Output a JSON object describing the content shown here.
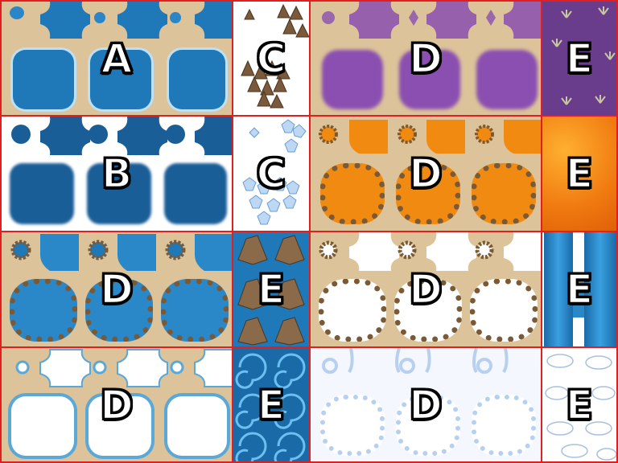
{
  "tileset": {
    "cells": [
      {
        "id": "r1c1",
        "label": "A",
        "kind": "water-autotile"
      },
      {
        "id": "r1c2",
        "label": "C",
        "kind": "rock-spikes"
      },
      {
        "id": "r1c3",
        "label": "D",
        "kind": "poison-swamp"
      },
      {
        "id": "r1c4",
        "label": "E",
        "kind": "purple-weeds"
      },
      {
        "id": "r2c1",
        "label": "B",
        "kind": "deep-water-shadow"
      },
      {
        "id": "r2c2",
        "label": "C",
        "kind": "ice-crystals"
      },
      {
        "id": "r2c3",
        "label": "D",
        "kind": "lava-pool"
      },
      {
        "id": "r2c4",
        "label": "E",
        "kind": "lava-tile"
      },
      {
        "id": "r3c1",
        "label": "D",
        "kind": "water-rock-pond"
      },
      {
        "id": "r3c2",
        "label": "E",
        "kind": "rocks-in-water"
      },
      {
        "id": "r3c3",
        "label": "D",
        "kind": "hole-rock-rim"
      },
      {
        "id": "r3c4",
        "label": "E",
        "kind": "waterfall"
      },
      {
        "id": "r4c1",
        "label": "D",
        "kind": "ice-floe"
      },
      {
        "id": "r4c2",
        "label": "E",
        "kind": "whirlpool"
      },
      {
        "id": "r4c3",
        "label": "D",
        "kind": "cloud-hole"
      },
      {
        "id": "r4c4",
        "label": "E",
        "kind": "clouds"
      }
    ]
  },
  "colors": {
    "border": "#e02020",
    "sand": "#dcc39a",
    "water": "#1f78b8",
    "deep_water": "#1a5e98",
    "poison": "#8a4fb0",
    "lava": "#f08a10",
    "rock": "#7a5a36",
    "ice": "#bcd8f4"
  }
}
